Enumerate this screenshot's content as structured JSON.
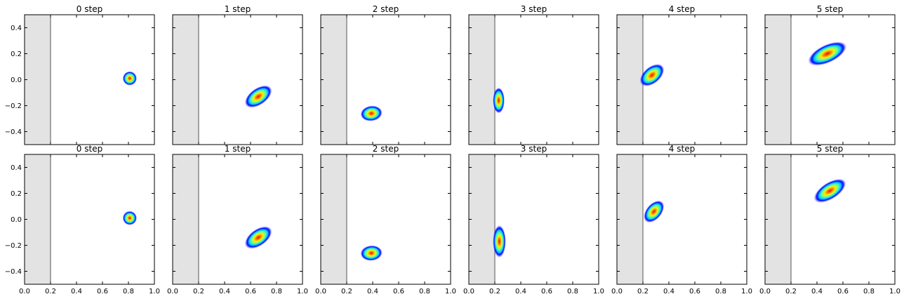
{
  "chart_data": {
    "type": "heatmap",
    "layout": {
      "rows": 2,
      "cols": 6
    },
    "xlim": [
      0.0,
      1.0
    ],
    "ylim": [
      -0.5,
      0.5
    ],
    "grid": false,
    "xticks": [
      0.0,
      0.2,
      0.4,
      0.6,
      0.8,
      1.0
    ],
    "xtick_labels": [
      "0.0",
      "0.2",
      "0.4",
      "0.6",
      "0.8",
      "1.0"
    ],
    "yticks": [
      0.4,
      0.2,
      0.0,
      -0.2,
      -0.4
    ],
    "ytick_labels": [
      "0.4",
      "0.2",
      "0.0",
      "−0.2",
      "−0.4"
    ],
    "wall": {
      "x_from": 0.0,
      "x_to": 0.2,
      "color": "#e3e3e3"
    },
    "colormap": [
      "#0000ff",
      "#00c8ff",
      "#66ff99",
      "#ffee00",
      "#ff7a00",
      "#e01010"
    ],
    "panels": [
      {
        "title": "0 step",
        "center": [
          0.81,
          0.01
        ],
        "sx": 0.055,
        "sy": 0.055,
        "angle": 0
      },
      {
        "title": "1 step",
        "center": [
          0.66,
          -0.13
        ],
        "sx": 0.12,
        "sy": 0.065,
        "angle": 35
      },
      {
        "title": "2 step",
        "center": [
          0.39,
          -0.26
        ],
        "sx": 0.085,
        "sy": 0.06,
        "angle": 8
      },
      {
        "title": "3 step",
        "center": [
          0.23,
          -0.16
        ],
        "sx": 0.045,
        "sy": 0.1,
        "angle": 0
      },
      {
        "title": "4 step",
        "center": [
          0.27,
          0.035
        ],
        "sx": 0.11,
        "sy": 0.065,
        "angle": 40
      },
      {
        "title": "5 step",
        "center": [
          0.48,
          0.2
        ],
        "sx": 0.16,
        "sy": 0.07,
        "angle": 25
      },
      {
        "title": "0 step",
        "center": [
          0.81,
          0.01
        ],
        "sx": 0.055,
        "sy": 0.055,
        "angle": 0
      },
      {
        "title": "1 step",
        "center": [
          0.66,
          -0.14
        ],
        "sx": 0.12,
        "sy": 0.065,
        "angle": 35
      },
      {
        "title": "2 step",
        "center": [
          0.39,
          -0.26
        ],
        "sx": 0.085,
        "sy": 0.06,
        "angle": 5
      },
      {
        "title": "3 step",
        "center": [
          0.235,
          -0.17
        ],
        "sx": 0.05,
        "sy": 0.125,
        "angle": 0
      },
      {
        "title": "4 step",
        "center": [
          0.285,
          0.06
        ],
        "sx": 0.1,
        "sy": 0.06,
        "angle": 50
      },
      {
        "title": "5 step",
        "center": [
          0.5,
          0.22
        ],
        "sx": 0.14,
        "sy": 0.065,
        "angle": 32
      }
    ]
  }
}
